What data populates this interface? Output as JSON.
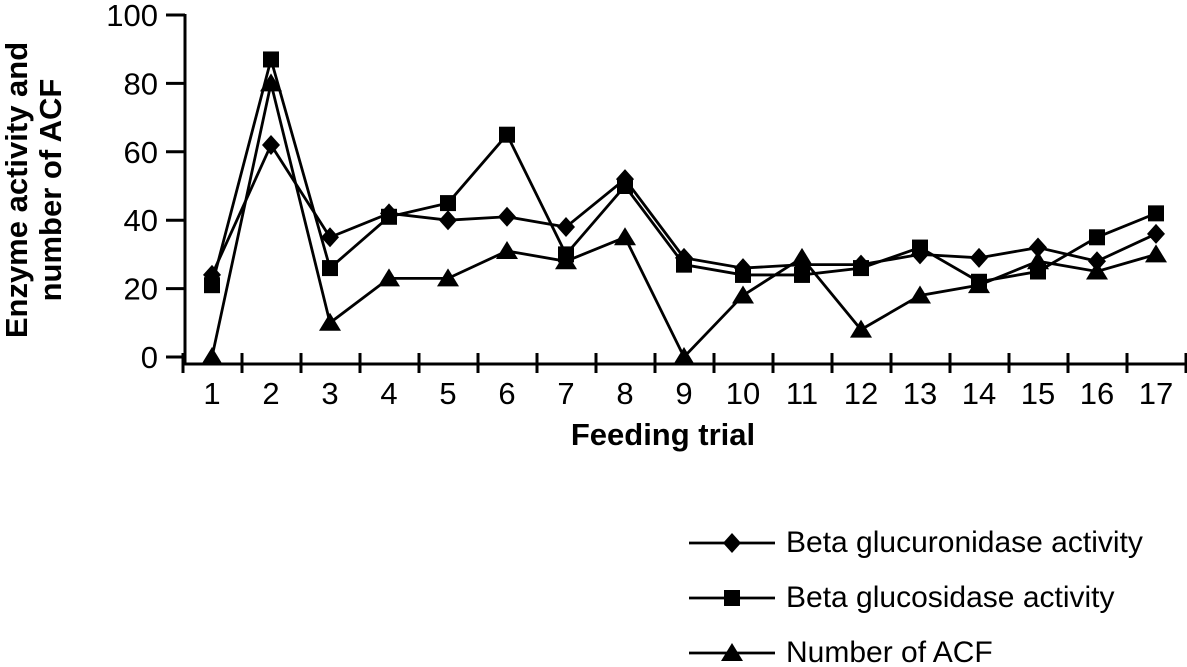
{
  "page": {
    "background": "#ffffff",
    "foreground": "#000000"
  },
  "chart_data": {
    "type": "line",
    "title": "",
    "xlabel": "Feeding trial",
    "ylabel": "Enzyme activity and number of ACF",
    "ylabel_lines": [
      "Enzyme activity and",
      "number of ACF"
    ],
    "x": [
      1,
      2,
      3,
      4,
      5,
      6,
      7,
      8,
      9,
      10,
      11,
      12,
      13,
      14,
      15,
      16,
      17
    ],
    "ylim": [
      0,
      100
    ],
    "yticks": [
      0,
      20,
      40,
      60,
      80,
      100
    ],
    "grid": false,
    "legend_position": "bottom-right",
    "axis_color": "#000000",
    "series": [
      {
        "name": "Beta glucuronidase activity",
        "marker": "diamond",
        "color": "#000000",
        "values": [
          24,
          62,
          35,
          42,
          40,
          41,
          38,
          52,
          29,
          26,
          27,
          27,
          30,
          29,
          32,
          28,
          36
        ]
      },
      {
        "name": "Beta glucosidase activity",
        "marker": "square",
        "color": "#000000",
        "values": [
          21,
          87,
          26,
          41,
          45,
          65,
          30,
          50,
          27,
          24,
          24,
          26,
          32,
          22,
          25,
          35,
          42
        ]
      },
      {
        "name": "Number of ACF",
        "marker": "triangle",
        "color": "#000000",
        "values": [
          0,
          80,
          10,
          23,
          23,
          31,
          28,
          35,
          0,
          18,
          29,
          8,
          18,
          21,
          28,
          25,
          30
        ]
      }
    ]
  }
}
